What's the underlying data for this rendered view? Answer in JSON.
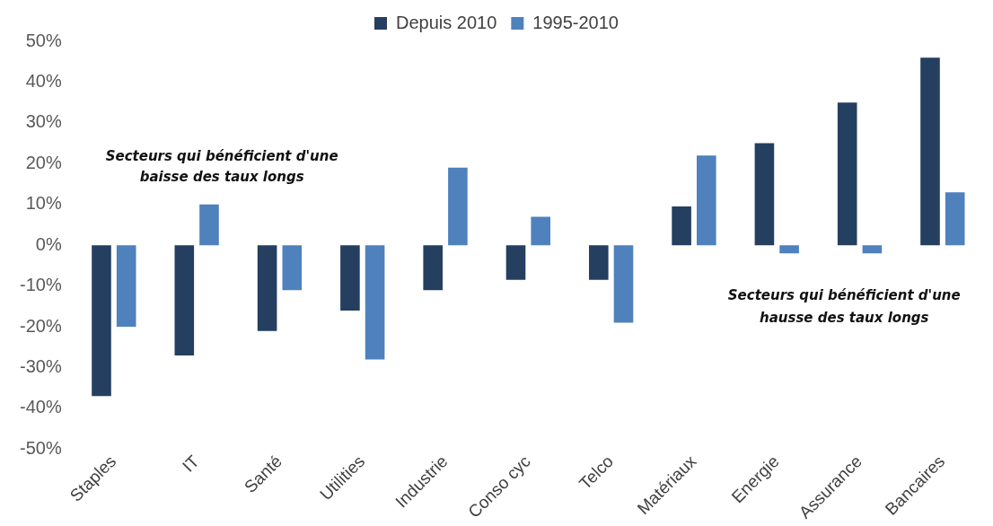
{
  "chart_data": {
    "type": "bar",
    "categories": [
      "Staples",
      "IT",
      "Santé",
      "Utilities",
      "Industrie",
      "Conso cyc",
      "Telco",
      "Matériaux",
      "Energie",
      "Assurance",
      "Bancaires"
    ],
    "series": [
      {
        "name": "Depuis 2010",
        "color": "#243f60",
        "values": [
          -37,
          -27,
          -21,
          -16,
          -11,
          -8.5,
          -8.5,
          9.5,
          25,
          35,
          46
        ]
      },
      {
        "name": "1995-2010",
        "color": "#4f81bd",
        "values": [
          -20,
          10,
          -11,
          -28,
          19,
          7,
          -19,
          22,
          -2,
          -2,
          13
        ]
      }
    ],
    "ylim": [
      -50,
      50
    ],
    "yticks": [
      {
        "value": -50,
        "label": "-50%"
      },
      {
        "value": -40,
        "label": "-40%"
      },
      {
        "value": -30,
        "label": "-30%"
      },
      {
        "value": -20,
        "label": "-20%"
      },
      {
        "value": -10,
        "label": "-10%"
      },
      {
        "value": 0,
        "label": "0%"
      },
      {
        "value": 10,
        "label": "10%"
      },
      {
        "value": 20,
        "label": "20%"
      },
      {
        "value": 30,
        "label": "30%"
      },
      {
        "value": 40,
        "label": "40%"
      },
      {
        "value": 50,
        "label": "50%"
      }
    ],
    "grid": false,
    "legend": "top",
    "annotations": [
      "Secteurs qui bénéficient d'une\nbaisse des taux longs",
      "Secteurs qui bénéficient d'une\nhausse des taux longs"
    ]
  }
}
